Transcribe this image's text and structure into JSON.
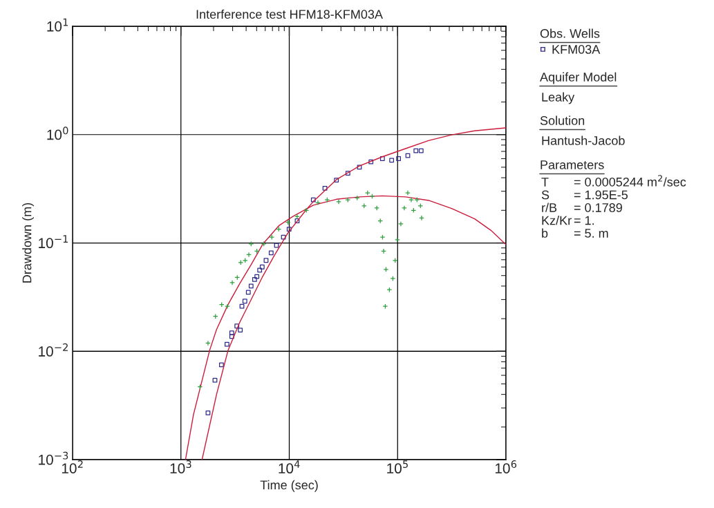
{
  "chart_data": {
    "type": "scatter",
    "title": "Interference test HFM18-KFM03A",
    "xlabel": "Time (sec)",
    "ylabel": "Drawdown (m)",
    "log": "xy",
    "xlim": [
      100,
      1000000
    ],
    "ylim": [
      0.001,
      10
    ],
    "xticks": [
      {
        "value": 100,
        "label": "10$^{2}$"
      },
      {
        "value": 1000,
        "label": "10$^{3}$"
      },
      {
        "value": 10000,
        "label": "10$^{4}$"
      },
      {
        "value": 100000,
        "label": "10$^{5}$"
      },
      {
        "value": 1000000,
        "label": "10$^{6}$"
      }
    ],
    "yticks": [
      {
        "value": 0.001,
        "label": "10$^{−3}$"
      },
      {
        "value": 0.01,
        "label": "10$^{−2}$"
      },
      {
        "value": 0.1,
        "label": "10$^{−1}$"
      },
      {
        "value": 1,
        "label": "10$^{0}$"
      },
      {
        "value": 10,
        "label": "10$^{1}$"
      }
    ],
    "grid": true,
    "legend": "right",
    "series": [
      {
        "name": "KFM03A",
        "marker": "square",
        "color": "#2e2a8c",
        "x": [
          1778,
          2061,
          2366,
          2661,
          2946,
          2946,
          3283,
          3532,
          3656,
          3893,
          4188,
          4444,
          4786,
          5023,
          5331,
          5623,
          6109,
          6808,
          7621,
          8830,
          9970,
          11830,
          16670,
          21330,
          27230,
          34760,
          44420,
          56750,
          72440,
          88100,
          102000,
          124200,
          147500,
          164900
        ],
        "values": [
          0.0027,
          0.0054,
          0.0075,
          0.0116,
          0.0148,
          0.0137,
          0.0171,
          0.0157,
          0.026,
          0.029,
          0.035,
          0.04,
          0.046,
          0.049,
          0.056,
          0.06,
          0.069,
          0.081,
          0.095,
          0.113,
          0.134,
          0.16,
          0.25,
          0.32,
          0.38,
          0.44,
          0.5,
          0.56,
          0.6,
          0.58,
          0.6,
          0.64,
          0.71,
          0.71
        ]
      },
      {
        "marker": "cross",
        "color": "#2e9e3e",
        "x": [
          1500,
          1778,
          2084,
          2378,
          2685,
          2977,
          3311,
          3565,
          3917,
          4236,
          4447,
          5026,
          5821,
          6902,
          8000,
          9730,
          11830,
          14390,
          18400,
          22390,
          28590,
          34760,
          42320,
          49070,
          52840,
          58230,
          64270,
          69190,
          72610,
          74300,
          78100,
          84000,
          76900,
          90400,
          94900,
          99600,
          107100,
          115300,
          124100,
          133600,
          140300,
          151000,
          162500,
          166600
        ],
        "values": [
          0.0047,
          0.0119,
          0.021,
          0.027,
          0.026,
          0.043,
          0.048,
          0.066,
          0.069,
          0.078,
          0.098,
          0.084,
          0.098,
          0.113,
          0.134,
          0.155,
          0.175,
          0.2,
          0.235,
          0.25,
          0.24,
          0.25,
          0.26,
          0.22,
          0.29,
          0.27,
          0.21,
          0.16,
          0.113,
          0.084,
          0.057,
          0.037,
          0.026,
          0.047,
          0.069,
          0.107,
          0.15,
          0.21,
          0.29,
          0.25,
          0.2,
          0.25,
          0.22,
          0.17
        ]
      },
      {
        "type": "line",
        "line_style": "solid",
        "color": "#cc1a3a",
        "x": [
          1102,
          1306,
          1841,
          2133,
          2723,
          3481,
          4448,
          5680,
          8000,
          10740,
          16670,
          27230,
          44420,
          72440,
          118300,
          193300,
          315000,
          514000,
          724000,
          995000
        ],
        "values": [
          0.001,
          0.0026,
          0.0102,
          0.0159,
          0.027,
          0.042,
          0.063,
          0.097,
          0.144,
          0.175,
          0.223,
          0.253,
          0.266,
          0.272,
          0.266,
          0.247,
          0.208,
          0.167,
          0.131,
          0.097
        ]
      },
      {
        "type": "line",
        "line_style": "solid",
        "color": "#cc1a3a",
        "x": [
          1567,
          2133,
          2723,
          3481,
          4448,
          5680,
          7250,
          9730,
          14390,
          16670,
          27230,
          44420,
          72440,
          118300,
          193300,
          315000,
          514000,
          995000
        ],
        "values": [
          0.001,
          0.004,
          0.0102,
          0.0184,
          0.03,
          0.049,
          0.076,
          0.124,
          0.203,
          0.241,
          0.384,
          0.514,
          0.625,
          0.743,
          0.881,
          0.995,
          1.084,
          1.153
        ]
      }
    ],
    "annotations": [
      "Obs. Wells",
      "Aquifer Model",
      "Leaky",
      "Solution",
      "Hantush-Jacob",
      "Parameters",
      "T",
      "= 0.0005244 m$^{2}$/sec",
      "S",
      "= 1.95E-5",
      "r/B",
      "= 0.1789",
      "Kz/Kr",
      "= 1.",
      "b",
      "= 5. m"
    ]
  }
}
